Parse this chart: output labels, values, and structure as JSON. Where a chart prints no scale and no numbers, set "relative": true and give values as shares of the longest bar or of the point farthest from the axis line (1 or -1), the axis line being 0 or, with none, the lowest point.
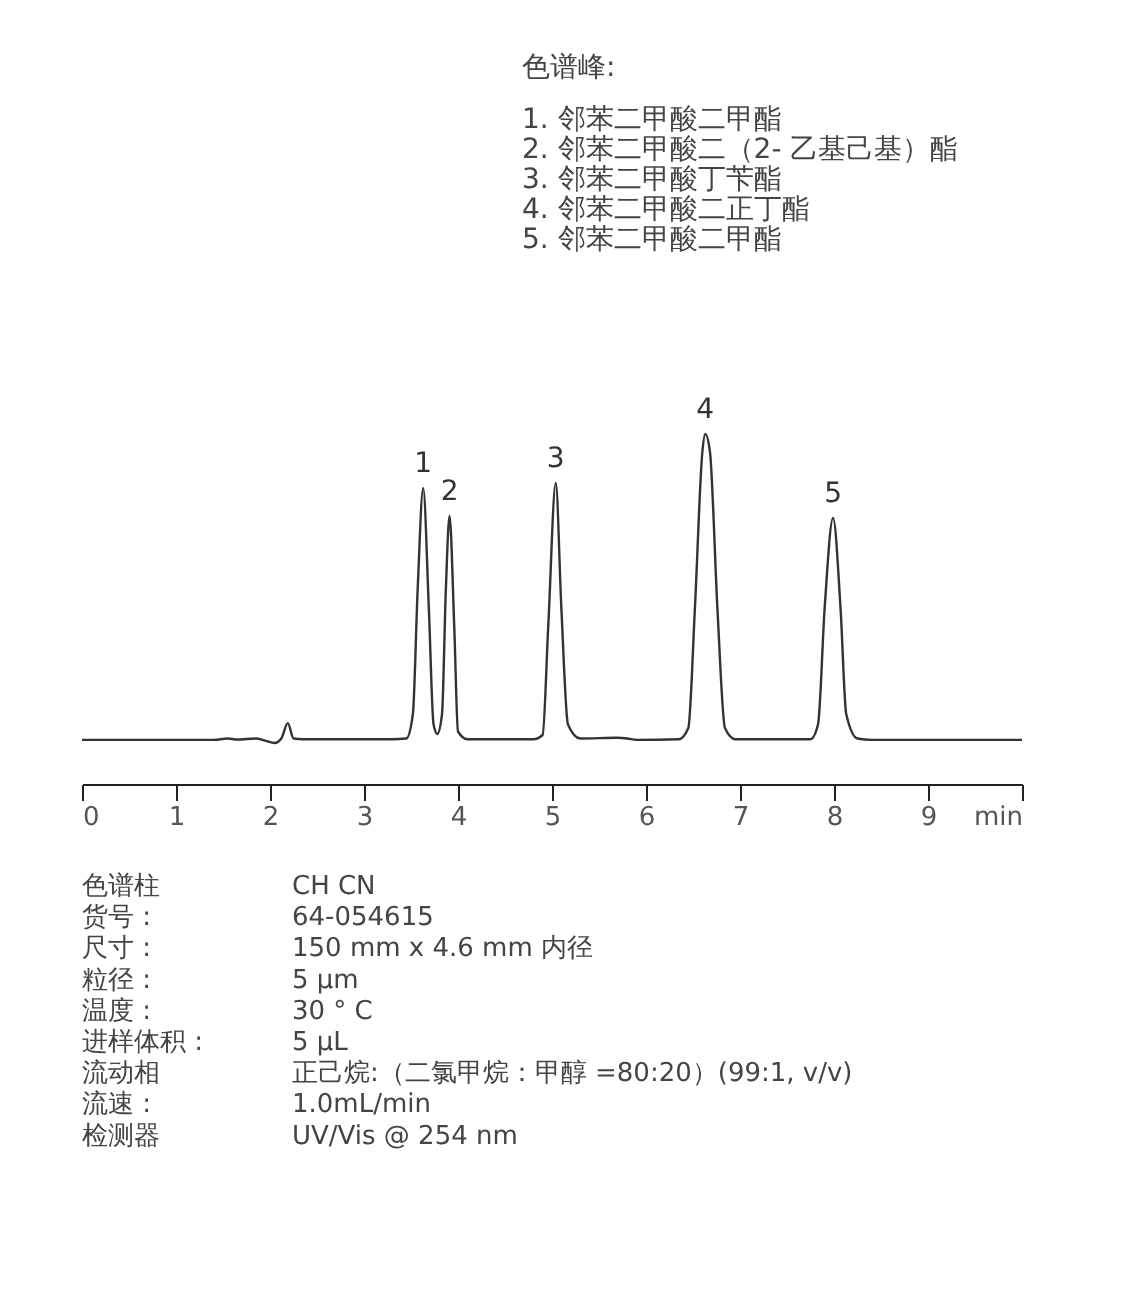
{
  "chart_data": [
    {
      "type": "line",
      "relative": true,
      "x": [
        0,
        1.4,
        1.55,
        1.65,
        1.85,
        1.95,
        2.05,
        2.12,
        2.19,
        2.25,
        2.35,
        3.3,
        3.45,
        3.52,
        3.57,
        3.63,
        3.69,
        3.74,
        3.78,
        3.83,
        3.87,
        3.91,
        3.96,
        4.0,
        4.1,
        4.8,
        4.9,
        4.96,
        5.04,
        5.1,
        5.17,
        5.3,
        5.7,
        5.8,
        5.9,
        6.35,
        6.45,
        6.52,
        6.6,
        6.63,
        6.68,
        6.76,
        6.84,
        6.95,
        7.75,
        7.83,
        7.9,
        7.99,
        8.07,
        8.13,
        8.25,
        8.4,
        10
      ],
      "series": [
        {
          "color": "#333333",
          "values": [
            0.126,
            0.126,
            0.13,
            0.127,
            0.13,
            0.124,
            0.117,
            0.13,
            0.174,
            0.13,
            0.128,
            0.128,
            0.13,
            0.2,
            0.55,
            0.845,
            0.5,
            0.17,
            0.143,
            0.2,
            0.55,
            0.766,
            0.45,
            0.15,
            0.128,
            0.128,
            0.14,
            0.45,
            0.86,
            0.5,
            0.17,
            0.13,
            0.132,
            0.13,
            0.126,
            0.128,
            0.16,
            0.5,
            0.95,
            1,
            0.95,
            0.5,
            0.16,
            0.128,
            0.128,
            0.17,
            0.5,
            0.76,
            0.5,
            0.2,
            0.13,
            0.126,
            0.126
          ]
        }
      ],
      "xlim": [
        0,
        10
      ],
      "xticks": [
        0,
        1,
        2,
        3,
        4,
        5,
        6,
        7,
        8,
        9,
        {
          "value": 10,
          "label": "min"
        }
      ],
      "grid": false,
      "marker": "none",
      "line_style": "solid",
      "annotations": [
        {
          "text": "1",
          "x": 3.63,
          "y": 0.845
        },
        {
          "text": "2",
          "x": 3.91,
          "y": 0.766
        },
        {
          "text": "3",
          "x": 5.04,
          "y": 0.86
        },
        {
          "text": "4",
          "x": 6.63,
          "y": 1
        },
        {
          "text": "5",
          "x": 7.99,
          "y": 0.76
        },
        "色谱峰:",
        "1. 邻苯二甲酸二甲酯",
        "2. 邻苯二甲酸二（2- 乙基己基）酯",
        "3. 邻苯二甲酸丁苄酯",
        "4. 邻苯二甲酸二正丁酯",
        "5. 邻苯二甲酸二甲酯"
      ]
    },
    {
      "type": "other",
      "annotations": [
        "色谱柱",
        "CH CN",
        "货号 :",
        "64-054615",
        "尺寸 :",
        "150 mm x 4.6 mm 内径",
        "粒径 :",
        "5 µm",
        "温度 :",
        "30 ° C",
        "进样体积 :",
        "5 µL",
        "流动相",
        "正己烷:（二氯甲烷：甲醇 =80:20）(99:1, v/v)",
        "流速 :",
        "1.0mL/min",
        "检测器",
        "UV/Vis @ 254 nm"
      ]
    }
  ]
}
